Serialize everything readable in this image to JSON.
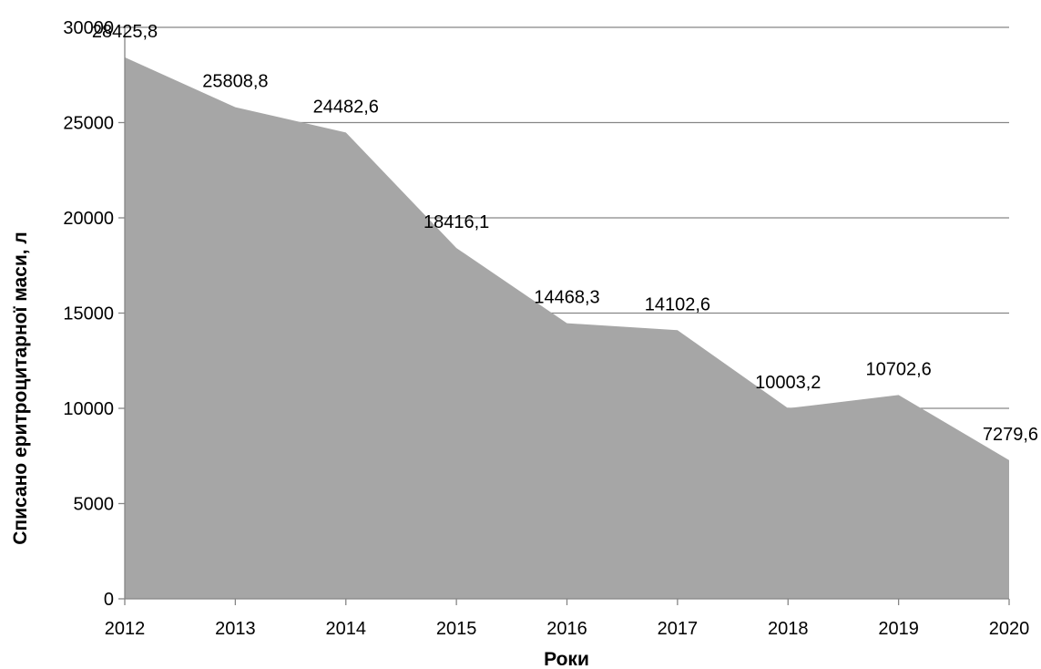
{
  "chart_data": {
    "type": "area",
    "x": [
      "2012",
      "2013",
      "2014",
      "2015",
      "2016",
      "2017",
      "2018",
      "2019",
      "2020"
    ],
    "series": [
      {
        "values": [
          28425.8,
          25808.8,
          24482.6,
          18416.1,
          14468.3,
          14102.6,
          10003.2,
          10702.6,
          7279.6
        ],
        "labels": [
          "28425,8",
          "25808,8",
          "24482,6",
          "18416,1",
          "14468,3",
          "14102,6",
          "10003,2",
          "10702,6",
          "7279,6"
        ]
      }
    ],
    "xlabel": "Роки",
    "ylabel": "Списано еритроцитарної маси, л",
    "ylim": [
      0,
      30000
    ],
    "yticks": [
      0,
      5000,
      10000,
      15000,
      20000,
      25000,
      30000
    ],
    "grid": true,
    "fill_color": "#a6a6a6",
    "grid_color": "#868686",
    "axis_color": "#868686"
  }
}
